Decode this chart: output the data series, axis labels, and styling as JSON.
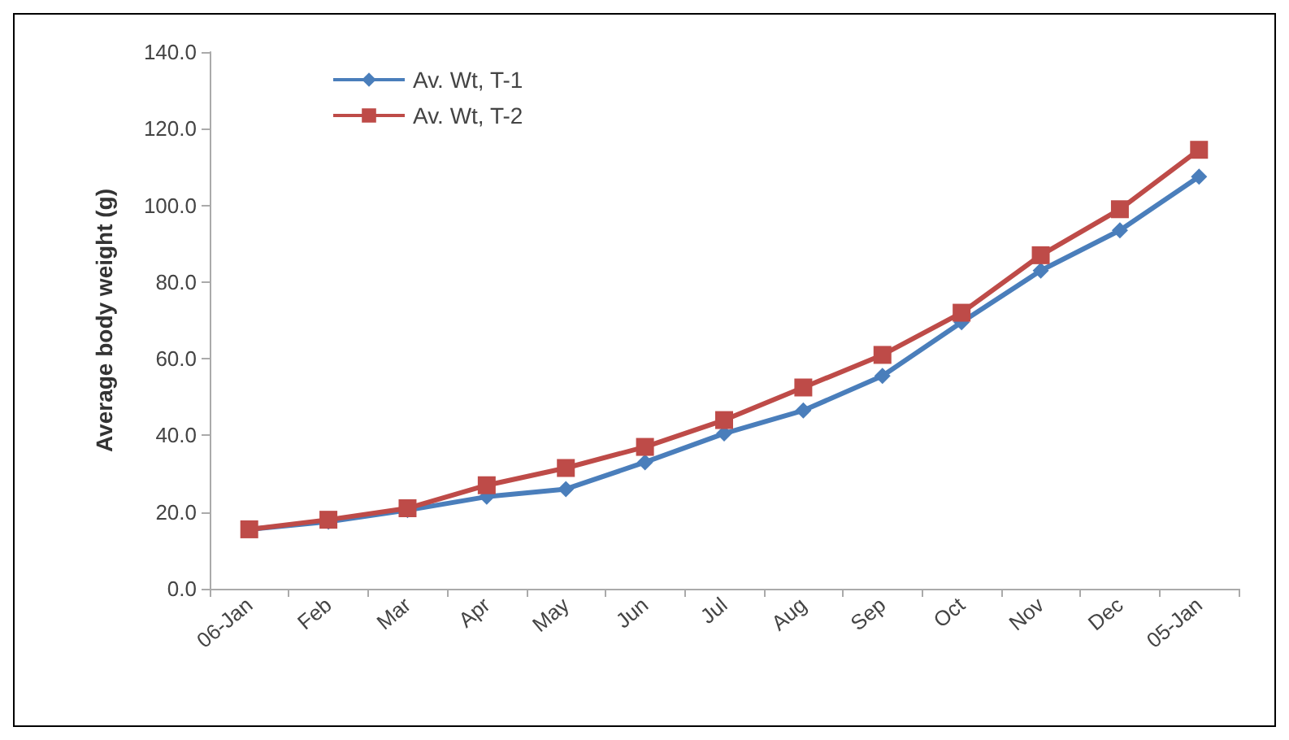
{
  "chart_data": {
    "type": "line",
    "ylabel": "Average body weight (g)",
    "categories": [
      "06-Jan",
      "Feb",
      "Mar",
      "Apr",
      "May",
      "Jun",
      "Jul",
      "Aug",
      "Sep",
      "Oct",
      "Nov",
      "Dec",
      "05-Jan"
    ],
    "series": [
      {
        "name": "Av. Wt, T-1",
        "color": "#4a7ebb",
        "marker": "diamond",
        "values": [
          15.5,
          17.5,
          20.5,
          24,
          26,
          33,
          40.5,
          46.5,
          55.5,
          69.5,
          83,
          93.5,
          107.5
        ]
      },
      {
        "name": "Av. Wt, T-2",
        "color": "#be4b48",
        "marker": "square",
        "values": [
          15.5,
          18,
          21,
          27,
          31.5,
          37,
          44,
          52.5,
          61,
          72,
          87,
          99,
          114.5
        ]
      }
    ],
    "ylim": [
      0,
      140
    ],
    "yticks": [
      {
        "value": 0,
        "label": "0.0"
      },
      {
        "value": 20,
        "label": "20.0"
      },
      {
        "value": 40,
        "label": "40.0"
      },
      {
        "value": 60,
        "label": "60.0"
      },
      {
        "value": 80,
        "label": "80.0"
      },
      {
        "value": 100,
        "label": "100.0"
      },
      {
        "value": 120,
        "label": "120.0"
      },
      {
        "value": 140,
        "label": "140.0"
      }
    ],
    "legend": "top left"
  }
}
